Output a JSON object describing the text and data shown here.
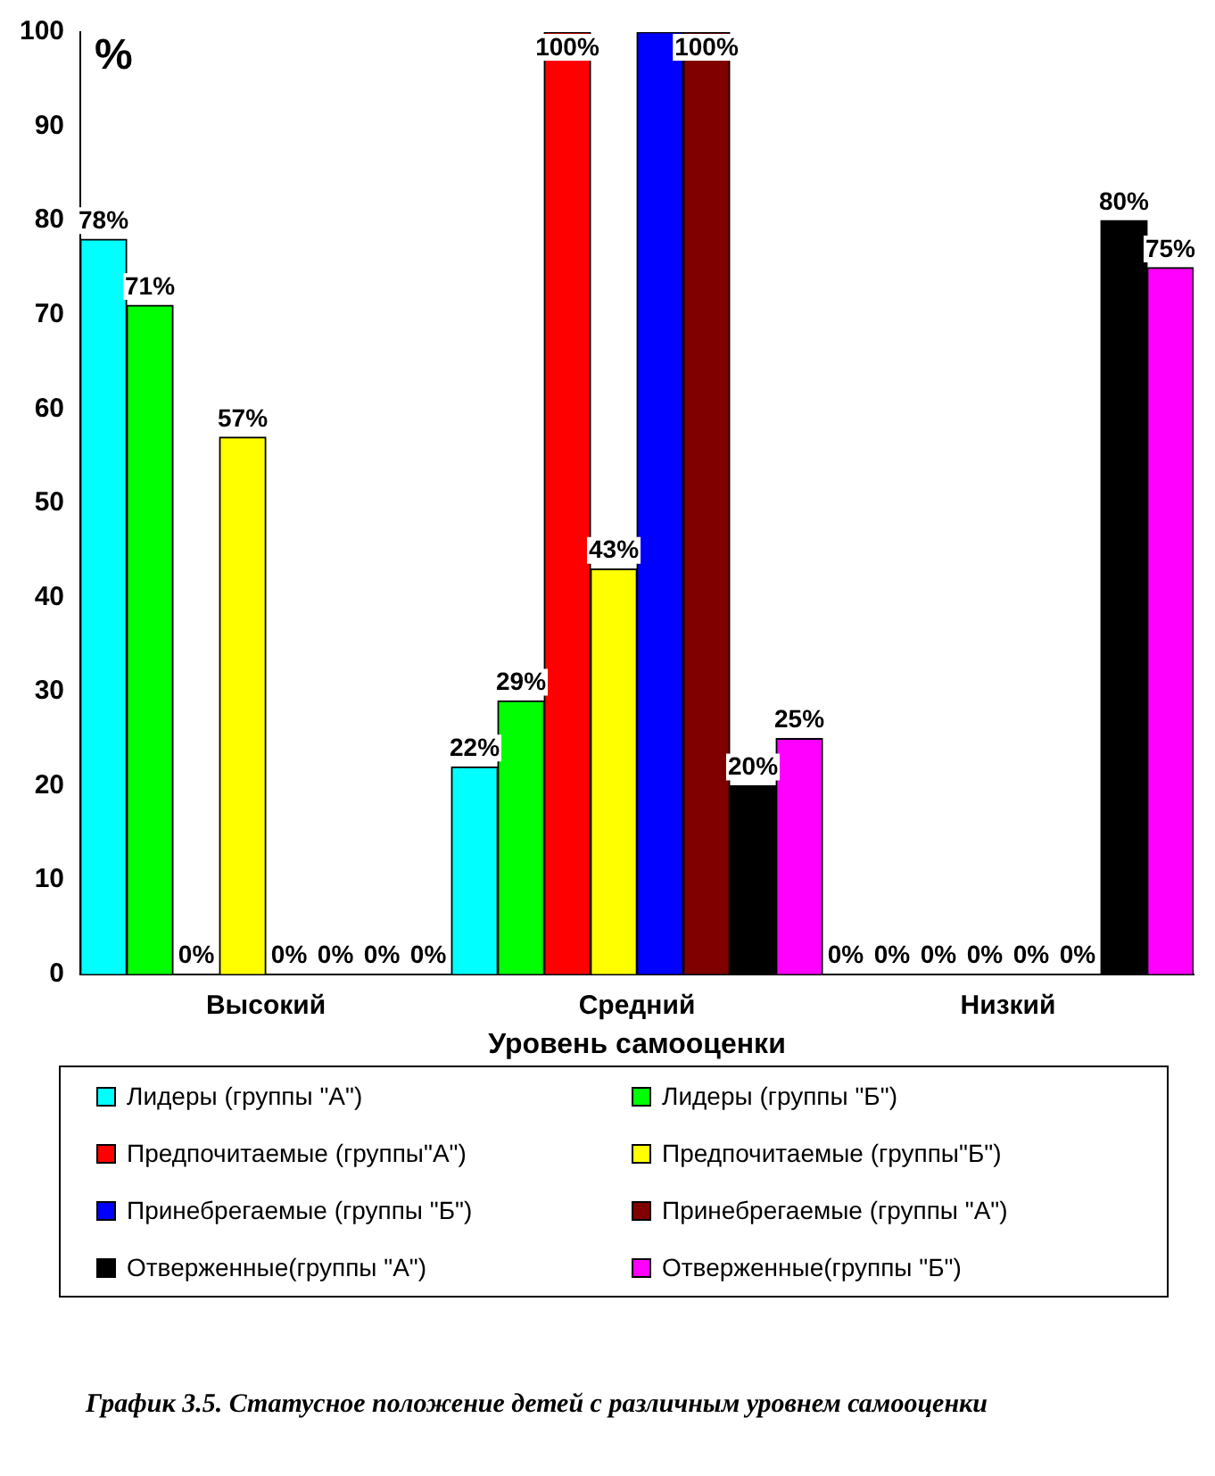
{
  "chart_data": {
    "type": "bar",
    "ylabel": "%",
    "xlabel": "Уровень самооценки",
    "categories": [
      "Высокий",
      "Средний",
      "Низкий"
    ],
    "series": [
      {
        "name": "Лидеры (группы \"А\")",
        "color": "#00ffff",
        "values": [
          78,
          22,
          0
        ],
        "value_labels": [
          "78%",
          "22%",
          "0%"
        ]
      },
      {
        "name": "Лидеры (группы \"Б\")",
        "color": "#00ff00",
        "values": [
          71,
          29,
          0
        ],
        "value_labels": [
          "71%",
          "29%",
          "0%"
        ]
      },
      {
        "name": "Предпочитаемые (группы\"А\")",
        "color": "#ff0000",
        "values": [
          0,
          100,
          0
        ],
        "value_labels": [
          "0%",
          "100%",
          "0%"
        ]
      },
      {
        "name": "Предпочитаемые (группы\"Б\")",
        "color": "#ffff00",
        "values": [
          57,
          43,
          0
        ],
        "value_labels": [
          "57%",
          "43%",
          "0%"
        ]
      },
      {
        "name": "Принебрегаемые (группы \"Б\")",
        "color": "#0000ff",
        "values": [
          0,
          100,
          0
        ],
        "value_labels": [
          "0%",
          null,
          "0%"
        ]
      },
      {
        "name": "Принебрегаемые (группы \"А\")",
        "color": "#800000",
        "values": [
          0,
          100,
          0
        ],
        "value_labels": [
          "0%",
          "100%",
          "0%"
        ]
      },
      {
        "name": "Отверженные(группы \"А\")",
        "color": "#000000",
        "values": [
          0,
          20,
          80
        ],
        "value_labels": [
          "0%",
          "20%",
          "80%"
        ]
      },
      {
        "name": "Отверженные(группы \"Б\")",
        "color": "#ff00ff",
        "values": [
          0,
          25,
          75
        ],
        "value_labels": [
          "0%",
          "25%",
          "75%"
        ]
      }
    ],
    "ylim": [
      0,
      100
    ],
    "yticks": [
      0,
      10,
      20,
      30,
      40,
      50,
      60,
      70,
      80,
      90,
      100
    ],
    "grid": false,
    "legend": "bottom",
    "annotations": [
      "График 3.5. Статусное положение детей с различным уровнем самооценки"
    ]
  }
}
